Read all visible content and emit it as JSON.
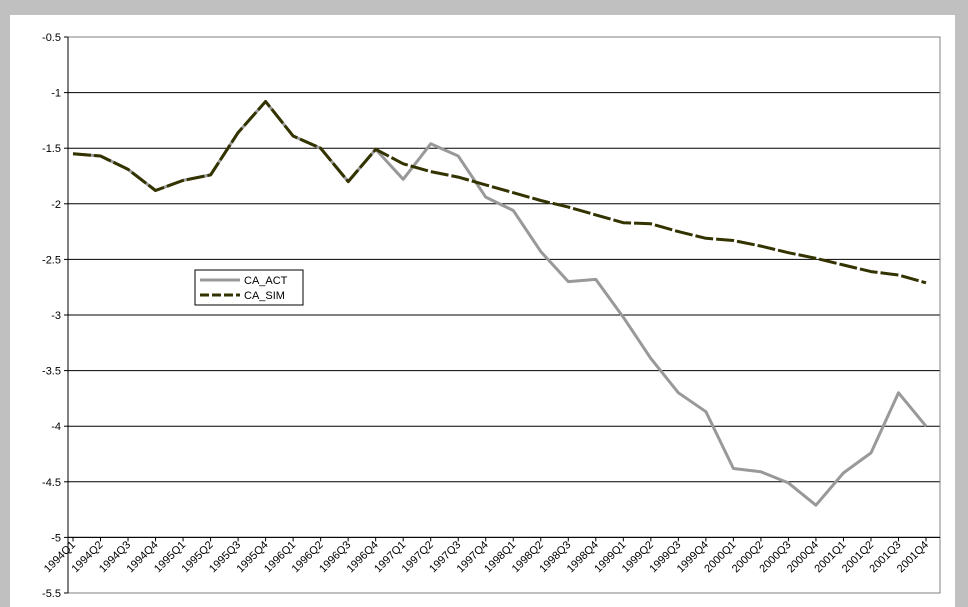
{
  "chart_data": {
    "type": "line",
    "title": "",
    "xlabel": "",
    "ylabel": "",
    "ylim": [
      -5.5,
      -0.5
    ],
    "yticks": [
      -0.5,
      -1,
      -1.5,
      -2,
      -2.5,
      -3,
      -3.5,
      -4,
      -4.5,
      -5,
      -5.5
    ],
    "grid": "horizontal",
    "legend_position": "center-left",
    "categories": [
      "1994Q1",
      "1994Q2",
      "1994Q3",
      "1994Q4",
      "1995Q1",
      "1995Q2",
      "1995Q3",
      "1995Q4",
      "1996Q1",
      "1996Q2",
      "1996Q3",
      "1996Q4",
      "1997Q1",
      "1997Q2",
      "1997Q3",
      "1997Q4",
      "1998Q1",
      "1998Q2",
      "1998Q3",
      "1998Q4",
      "1999Q1",
      "1999Q2",
      "1999Q3",
      "1999Q4",
      "2000Q1",
      "2000Q2",
      "2000Q3",
      "2000Q4",
      "2001Q1",
      "2001Q2",
      "2001Q3",
      "2001Q4"
    ],
    "series": [
      {
        "name": "CA_ACT",
        "color": "#999999",
        "dash": "solid",
        "values": [
          -1.55,
          -1.57,
          -1.69,
          -1.88,
          -1.79,
          -1.74,
          -1.36,
          -1.08,
          -1.39,
          -1.5,
          -1.8,
          -1.51,
          -1.78,
          -1.46,
          -1.57,
          -1.94,
          -2.06,
          -2.43,
          -2.7,
          -2.68,
          -3.02,
          -3.39,
          -3.7,
          -3.87,
          -4.38,
          -4.41,
          -4.51,
          -4.71,
          -4.42,
          -4.24,
          -3.7,
          -4.0
        ]
      },
      {
        "name": "CA_SIM",
        "color": "#333300",
        "dash": "dashed",
        "values": [
          -1.55,
          -1.57,
          -1.69,
          -1.88,
          -1.79,
          -1.74,
          -1.36,
          -1.08,
          -1.39,
          -1.5,
          -1.8,
          -1.51,
          -1.64,
          -1.71,
          -1.76,
          -1.83,
          -1.9,
          -1.97,
          -2.03,
          -2.1,
          -2.17,
          -2.18,
          -2.25,
          -2.31,
          -2.33,
          -2.38,
          -2.44,
          -2.49,
          -2.55,
          -2.61,
          -2.64,
          -2.71
        ]
      }
    ]
  }
}
